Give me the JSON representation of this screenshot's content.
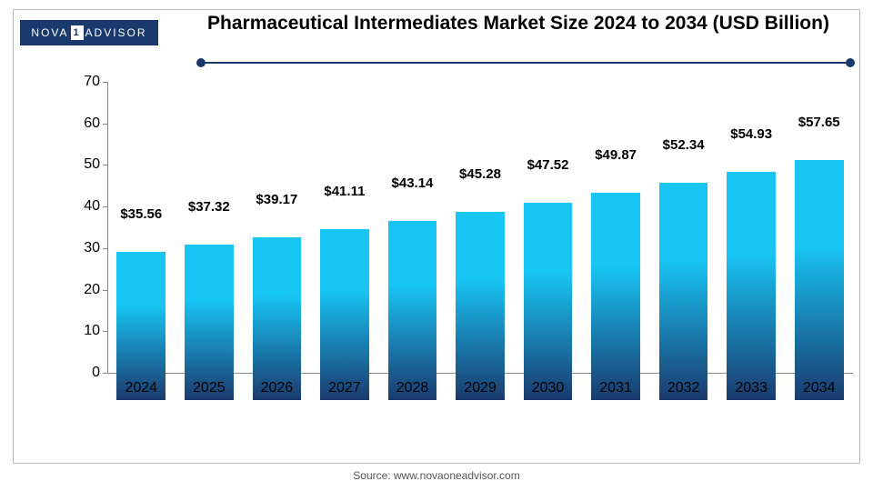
{
  "logo": {
    "brand_left": "NOVA",
    "brand_one": "1",
    "brand_right": "ADVISOR"
  },
  "title": "Pharmaceutical Intermediates Market Size 2024 to 2034 (USD Billion)",
  "title_fontsize": 21,
  "source": "Source: www.novaoneadvisor.com",
  "chart": {
    "type": "bar",
    "categories": [
      "2024",
      "2025",
      "2026",
      "2027",
      "2028",
      "2029",
      "2030",
      "2031",
      "2032",
      "2033",
      "2034"
    ],
    "values": [
      35.56,
      37.32,
      39.17,
      41.11,
      43.14,
      45.28,
      47.52,
      49.87,
      52.34,
      54.93,
      57.65
    ],
    "value_labels": [
      "$35.56",
      "$37.32",
      "$39.17",
      "$41.11",
      "$43.14",
      "$45.28",
      "$47.52",
      "$49.87",
      "$52.34",
      "$54.93",
      "$57.65"
    ],
    "ylim": [
      0,
      70
    ],
    "ytick_step": 10,
    "yticks": [
      0,
      10,
      20,
      30,
      40,
      50,
      60,
      70
    ],
    "bar_gradient_top": "#18c6f4",
    "bar_gradient_bottom": "#1a3a6e",
    "bar_width_ratio": 0.72,
    "background_color": "#ffffff",
    "axis_color": "#888888",
    "label_color": "#000000",
    "label_fontsize": 16,
    "value_label_fontsize": 15,
    "rule_color": "#1a3a6e"
  }
}
